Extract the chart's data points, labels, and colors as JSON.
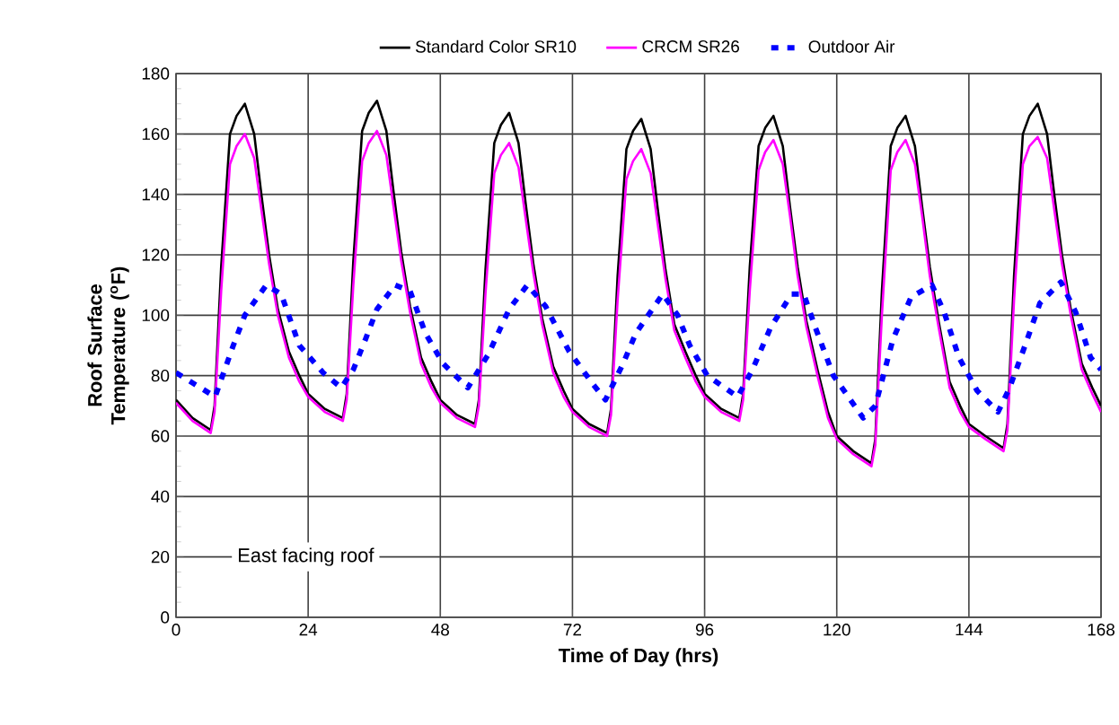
{
  "chart_data": {
    "type": "line",
    "xlabel": "Time of Day (hrs)",
    "ylabel": "Roof Surface Temperature ($^{o}$F)",
    "annotations": [
      "East facing roof"
    ],
    "xlim": [
      0,
      168
    ],
    "xticks": [
      0,
      24,
      48,
      72,
      96,
      120,
      144,
      168
    ],
    "ylim": [
      0,
      180
    ],
    "yticks": [
      0,
      20,
      40,
      60,
      80,
      100,
      120,
      140,
      160,
      180
    ],
    "grid": true,
    "legend": "top",
    "series": [
      {
        "name": "Standard Color SR10",
        "color": "#000000",
        "line_style": "solid",
        "x": [
          0,
          3,
          6.3,
          7,
          8.2,
          9.8,
          11,
          12.5,
          14.2,
          15.5,
          16.9,
          18.5,
          20.5,
          22.4,
          24,
          27,
          30.3,
          31,
          32.2,
          33.8,
          35,
          36.5,
          38.2,
          39.5,
          40.9,
          42.5,
          44.5,
          46.4,
          48,
          51,
          54.3,
          55,
          56.2,
          57.8,
          59,
          60.5,
          62.2,
          63.5,
          64.9,
          66.5,
          68.5,
          70.4,
          72,
          75,
          78.3,
          79,
          80.2,
          81.8,
          83,
          84.5,
          86.2,
          87.5,
          88.9,
          90.5,
          92.5,
          94.4,
          96,
          99,
          102.3,
          103,
          104.2,
          105.8,
          107,
          108.5,
          110.2,
          111.5,
          112.9,
          114.5,
          116.5,
          118.4,
          120,
          123,
          126.3,
          127,
          128.2,
          129.8,
          131,
          132.5,
          134.2,
          135.5,
          136.9,
          138.5,
          140.5,
          142.4,
          144,
          147,
          150.3,
          151,
          152.2,
          153.8,
          155,
          156.5,
          158.2,
          159.5,
          160.9,
          162.5,
          164.5,
          166.4,
          168
        ],
        "values": [
          72,
          66,
          62,
          70,
          116,
          160,
          166,
          170,
          160,
          140,
          120,
          102,
          88,
          80,
          74,
          69,
          66,
          74,
          118,
          161,
          167,
          171,
          161,
          141,
          121,
          103,
          86,
          78,
          72,
          67,
          64,
          72,
          115,
          157,
          163,
          167,
          157,
          137,
          117,
          99,
          83,
          75,
          69,
          64,
          61,
          69,
          113,
          155,
          161,
          165,
          155,
          135,
          115,
          97,
          88,
          80,
          74,
          69,
          66,
          74,
          116,
          156,
          162,
          166,
          156,
          136,
          116,
          98,
          82,
          68,
          60,
          55,
          51,
          59,
          108,
          156,
          162,
          166,
          156,
          136,
          116,
          98,
          78,
          70,
          64,
          60,
          56,
          64,
          113,
          160,
          166,
          170,
          160,
          140,
          120,
          102,
          84,
          76,
          70
        ]
      },
      {
        "name": "CRCM SR26",
        "color": "#ff00ff",
        "line_style": "solid",
        "x": [
          0,
          3,
          6.3,
          7,
          8.2,
          9.8,
          11,
          12.5,
          14.2,
          15.5,
          16.9,
          18.5,
          20.5,
          22.4,
          24,
          27,
          30.3,
          31,
          32.2,
          33.8,
          35,
          36.5,
          38.2,
          39.5,
          40.9,
          42.5,
          44.5,
          46.4,
          48,
          51,
          54.3,
          55,
          56.2,
          57.8,
          59,
          60.5,
          62.2,
          63.5,
          64.9,
          66.5,
          68.5,
          70.4,
          72,
          75,
          78.3,
          79,
          80.2,
          81.8,
          83,
          84.5,
          86.2,
          87.5,
          88.9,
          90.5,
          92.5,
          94.4,
          96,
          99,
          102.3,
          103,
          104.2,
          105.8,
          107,
          108.5,
          110.2,
          111.5,
          112.9,
          114.5,
          116.5,
          118.4,
          120,
          123,
          126.3,
          127,
          128.2,
          129.8,
          131,
          132.5,
          134.2,
          135.5,
          136.9,
          138.5,
          140.5,
          142.4,
          144,
          147,
          150.3,
          151,
          152.2,
          153.8,
          155,
          156.5,
          158.2,
          159.5,
          160.9,
          162.5,
          164.5,
          166.4,
          168
        ],
        "values": [
          71,
          65,
          61,
          68,
          108,
          150,
          156,
          160,
          152,
          135,
          117,
          100,
          86,
          78,
          73,
          68,
          65,
          72,
          110,
          151,
          157,
          161,
          153,
          136,
          118,
          101,
          84,
          76,
          71,
          66,
          63,
          70,
          107,
          147,
          153,
          157,
          149,
          132,
          114,
          97,
          81,
          73,
          68,
          63,
          60,
          67,
          105,
          145,
          151,
          155,
          147,
          130,
          112,
          95,
          86,
          78,
          73,
          68,
          65,
          72,
          108,
          148,
          154,
          158,
          150,
          133,
          113,
          96,
          80,
          66,
          59,
          54,
          50,
          57,
          100,
          148,
          154,
          158,
          150,
          133,
          113,
          96,
          76,
          68,
          63,
          59,
          55,
          62,
          105,
          150,
          156,
          159,
          152,
          135,
          117,
          100,
          82,
          74,
          68
        ]
      },
      {
        "name": "Outdoor Air",
        "color": "#0000ff",
        "line_style": "dashed",
        "x": [
          0,
          7.1,
          10.4,
          12.5,
          16.4,
          19.1,
          22.4,
          26.7,
          30,
          32.2,
          34.4,
          36.5,
          39.8,
          42.5,
          45.3,
          48.5,
          53,
          56.7,
          60.5,
          63.8,
          67.1,
          71.4,
          75.8,
          78,
          81.2,
          83.5,
          88.4,
          91.1,
          93.3,
          96.5,
          102,
          104.7,
          108,
          111.8,
          114,
          116.1,
          119.4,
          124.8,
          127,
          130.2,
          133.5,
          137.3,
          139.5,
          142.2,
          145.5,
          149.3,
          151.4,
          154.2,
          156.9,
          160.7,
          163.4,
          166.1,
          168
        ],
        "values": [
          81,
          73,
          90,
          100,
          110,
          107,
          90,
          81,
          76,
          82,
          92,
          102,
          110,
          108,
          94,
          84,
          76,
          87,
          102,
          110,
          103,
          88,
          77,
          72,
          84,
          94,
          107,
          100,
          90,
          80,
          73,
          82,
          96,
          107,
          107,
          96,
          80,
          66,
          70,
          92,
          106,
          110,
          101,
          86,
          75,
          68,
          76,
          90,
          104,
          111,
          101,
          86,
          82
        ]
      }
    ]
  }
}
